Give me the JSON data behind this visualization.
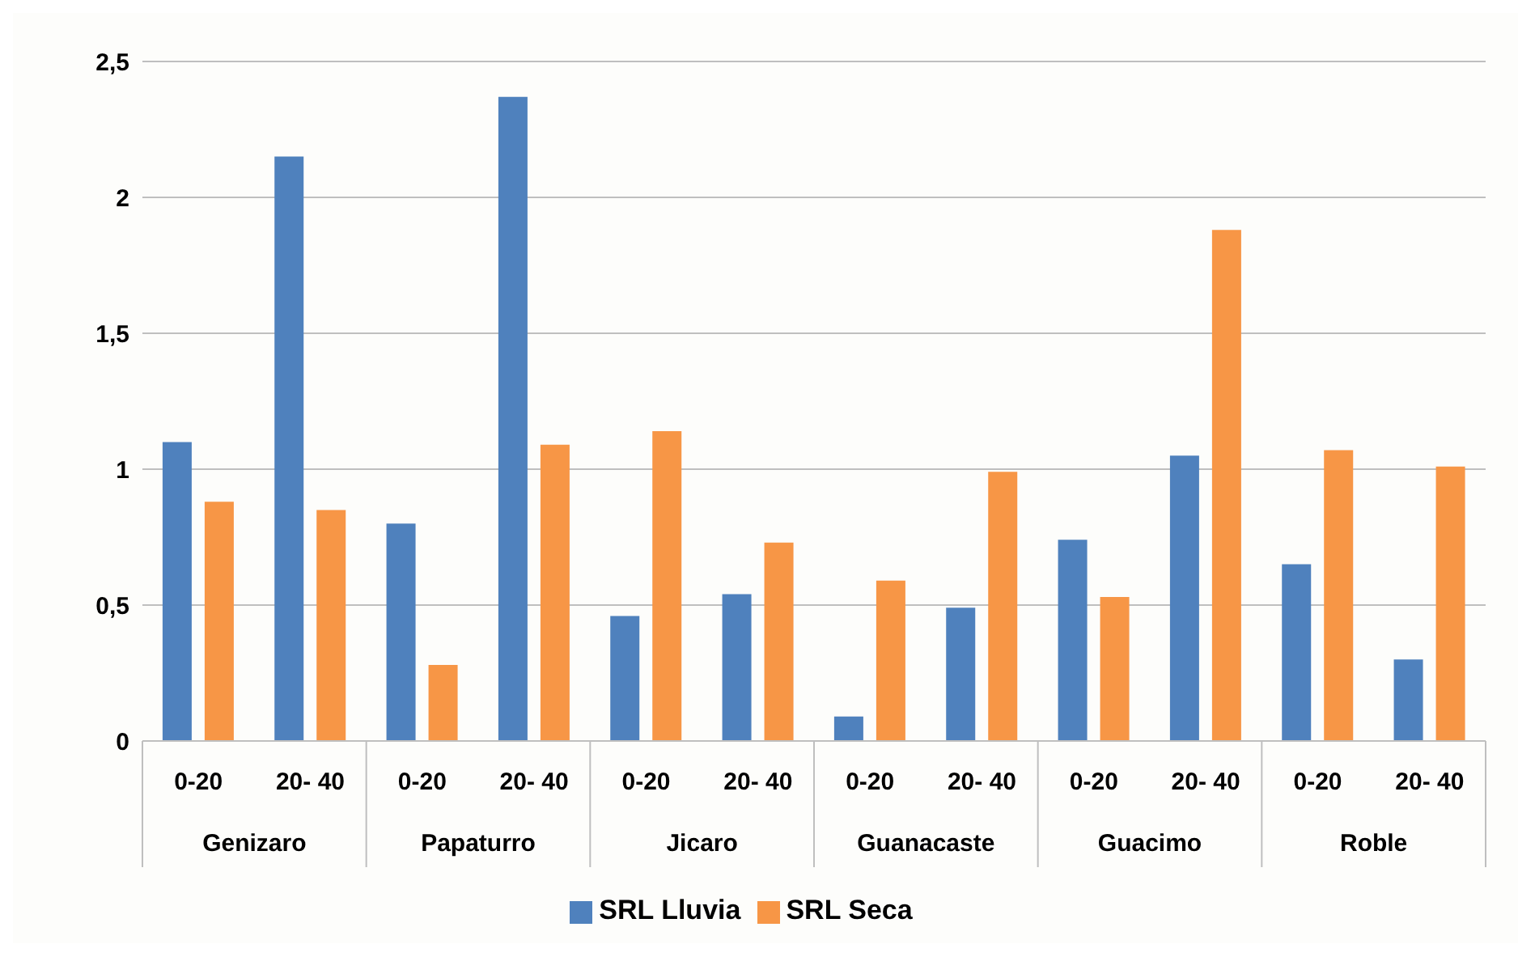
{
  "chart_data": {
    "type": "bar",
    "categories": [
      "0-20",
      "20- 40",
      "0-20",
      "20- 40",
      "0-20",
      "20- 40",
      "0-20",
      "20- 40",
      "0-20",
      "20- 40",
      "0-20",
      "20- 40"
    ],
    "annotations": [
      "Genizaro",
      "Papaturro",
      "Jicaro",
      "Guanacaste",
      "Guacimo",
      "Roble"
    ],
    "series": [
      {
        "name": "SRL Lluvia",
        "color": "#4f81bd",
        "values": [
          1.1,
          2.15,
          0.8,
          2.37,
          0.46,
          0.54,
          0.09,
          0.49,
          0.74,
          1.05,
          0.65,
          0.3
        ]
      },
      {
        "name": "SRL Seca",
        "color": "#f79646",
        "values": [
          0.88,
          0.85,
          0.28,
          1.09,
          1.14,
          0.73,
          0.59,
          0.99,
          0.53,
          1.88,
          1.07,
          1.01
        ]
      }
    ],
    "ylim": [
      0,
      2.5
    ],
    "yticks": [
      0,
      {
        "value": 0.5,
        "label": "0,5"
      },
      1,
      {
        "value": 1.5,
        "label": "1,5"
      },
      2,
      {
        "value": 2.5,
        "label": "2,5"
      }
    ],
    "grid": "y",
    "legend": "bottom"
  }
}
